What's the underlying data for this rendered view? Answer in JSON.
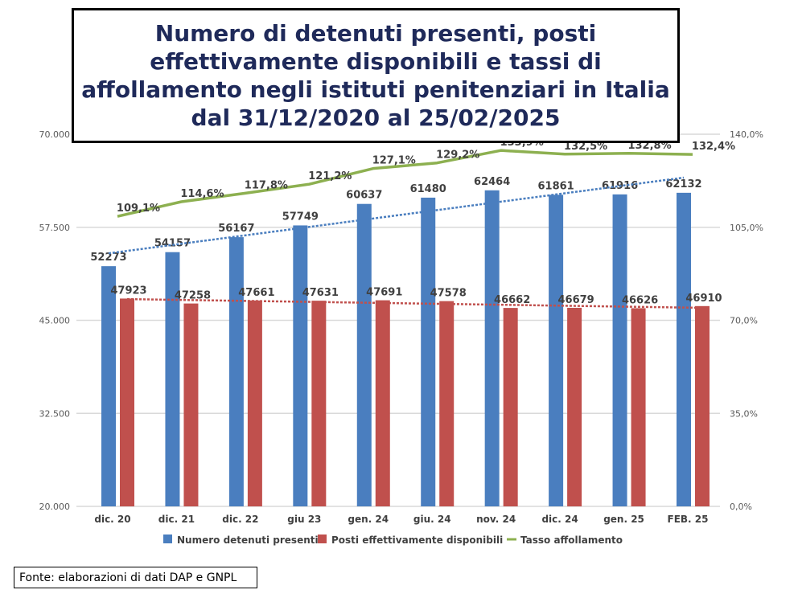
{
  "chart_data": {
    "type": "bar",
    "title": "Numero di detenuti presenti, posti effettivamente disponibili e tassi di affollamento negli istituti penitenziari in Italia dal 31/12/2020 al 25/02/2025",
    "categories": [
      "dic. 20",
      "dic. 21",
      "dic. 22",
      "giu 23",
      "gen. 24",
      "giu. 24",
      "nov. 24",
      "dic. 24",
      "gen. 25",
      "FEB. 25"
    ],
    "series": [
      {
        "name": "Numero detenuti presenti",
        "type": "bar",
        "axis": "left",
        "color": "#4a7ebf",
        "values": [
          52273,
          54157,
          56167,
          57749,
          60637,
          61480,
          62464,
          61861,
          61916,
          62132
        ],
        "trendline": true
      },
      {
        "name": "Posti effettivamente disponibili",
        "type": "bar",
        "axis": "left",
        "color": "#c0504d",
        "values": [
          47923,
          47258,
          47661,
          47631,
          47691,
          47578,
          46662,
          46679,
          46626,
          46910
        ],
        "trendline": true
      },
      {
        "name": "Tasso affollamento",
        "type": "line",
        "axis": "right",
        "color": "#8db050",
        "values": [
          109.1,
          114.6,
          117.8,
          121.2,
          127.1,
          129.2,
          133.9,
          132.5,
          132.8,
          132.4
        ],
        "labels": [
          "109,1%",
          "114,6%",
          "117,8%",
          "121,2%",
          "127,1%",
          "129,2%",
          "133,9%",
          "132,5%",
          "132,8%",
          "132,4%"
        ]
      }
    ],
    "y_left": {
      "range": [
        20000,
        70000
      ],
      "ticks": [
        "20.000",
        "32.500",
        "45.000",
        "57.500",
        "70.000"
      ]
    },
    "y_right": {
      "range": [
        0,
        140
      ],
      "ticks": [
        "0,0%",
        "35,0%",
        "70,0%",
        "105,0%",
        "140,0%"
      ]
    },
    "grid": true,
    "legend_position": "bottom"
  },
  "source": "Fonte: elaborazioni di dati DAP e GNPL"
}
